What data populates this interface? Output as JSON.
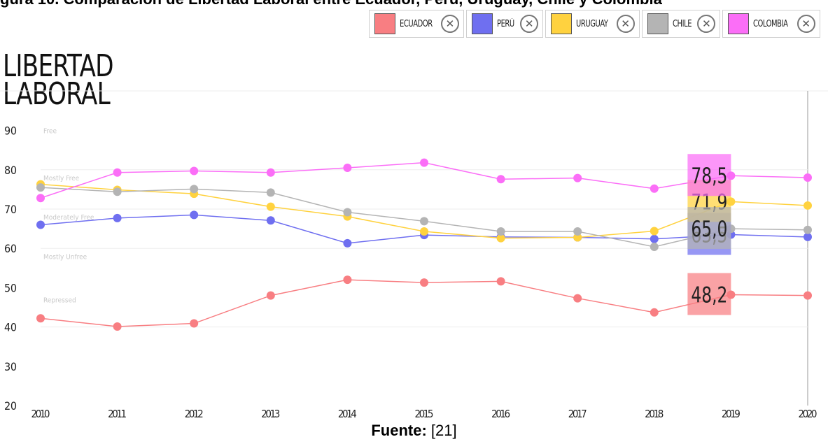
{
  "header_strip": "gura 10. Comparación de Libertad Laboral entre Ecuador, Perú, Uruguay, Chile y Colombia",
  "title_line1": "LIBERTAD",
  "title_line2": "LABORAL",
  "source_label": "Fuente:",
  "source_ref": " [21]",
  "chart_data": {
    "type": "line",
    "x": [
      2010,
      2011,
      2012,
      2013,
      2014,
      2015,
      2016,
      2017,
      2018,
      2019,
      2020
    ],
    "ylim": [
      20,
      90
    ],
    "yticks": [
      20,
      30,
      40,
      50,
      60,
      70,
      80,
      90
    ],
    "zones": [
      "Free",
      "Mostly Free",
      "Moderately Free",
      "Mostly Unfree",
      "Repressed"
    ],
    "series": [
      {
        "name": "ECUADOR",
        "color": "#f87e82",
        "values": [
          42.2,
          40.1,
          40.9,
          48.0,
          52.0,
          51.3,
          51.6,
          47.3,
          43.7,
          48.2,
          48.0
        ],
        "callout": "48,2"
      },
      {
        "name": "PERÚ",
        "color": "#6f6ff0",
        "values": [
          66.0,
          67.7,
          68.5,
          67.1,
          61.3,
          63.4,
          62.9,
          62.8,
          62.4,
          63.5,
          62.9
        ],
        "callout": "63,5"
      },
      {
        "name": "URUGUAY",
        "color": "#ffd23f",
        "values": [
          76.3,
          74.9,
          73.9,
          70.6,
          68.1,
          64.3,
          62.6,
          62.8,
          64.4,
          71.9,
          70.9
        ],
        "callout": "71,9"
      },
      {
        "name": "CHILE",
        "color": "#b4b4b4",
        "values": [
          75.5,
          74.4,
          75.1,
          74.2,
          69.2,
          66.9,
          64.3,
          64.3,
          60.4,
          65.0,
          64.7
        ],
        "callout": "65,0"
      },
      {
        "name": "COLOMBIA",
        "color": "#fb6ef7",
        "values": [
          72.8,
          79.3,
          79.7,
          79.3,
          80.5,
          81.8,
          77.6,
          77.9,
          75.2,
          78.5,
          78.0
        ],
        "callout": "78,5"
      }
    ],
    "legend_position": "top-right",
    "grid": true
  }
}
